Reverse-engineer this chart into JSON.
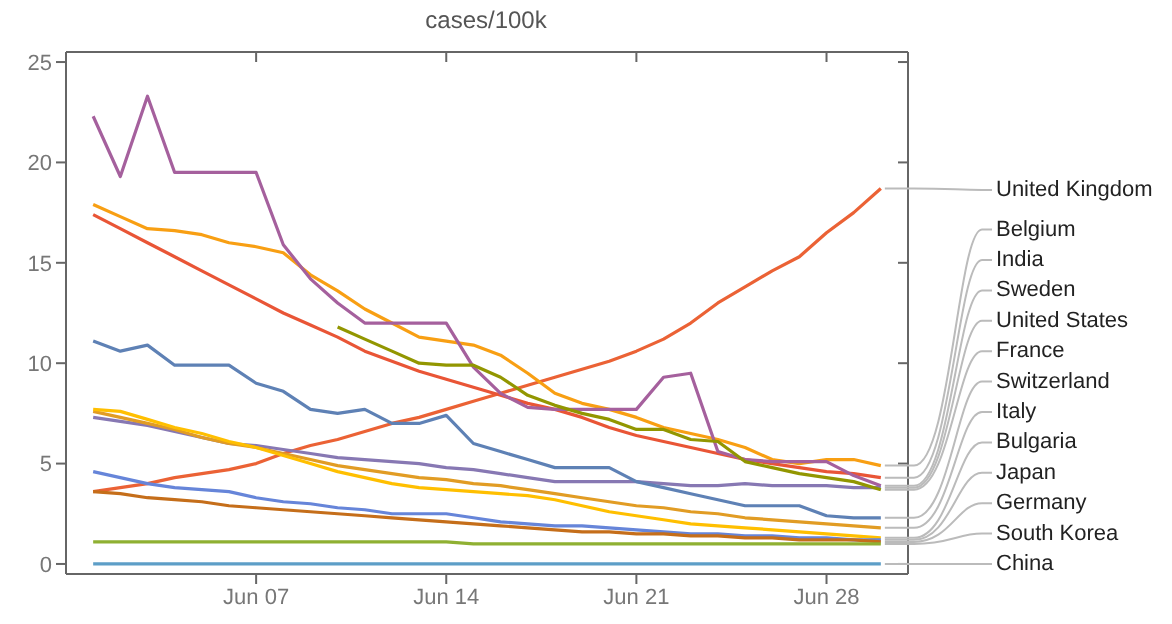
{
  "chart_data": {
    "type": "line",
    "title": "cases/100k",
    "x": [
      "--06-01",
      "--06-02",
      "--06-03",
      "--06-04",
      "--06-05",
      "--06-06",
      "--06-07",
      "--06-08",
      "--06-09",
      "--06-10",
      "--06-11",
      "--06-12",
      "--06-13",
      "--06-14",
      "--06-15",
      "--06-16",
      "--06-17",
      "--06-18",
      "--06-19",
      "--06-20",
      "--06-21",
      "--06-22",
      "--06-23",
      "--06-24",
      "--06-25",
      "--06-26",
      "--06-27",
      "--06-28",
      "--06-29",
      "--06-30"
    ],
    "xlim": [
      "--05-31",
      "--07-01"
    ],
    "xticks": [
      {
        "value": "--06-07",
        "label": "Jun 07"
      },
      {
        "value": "--06-14",
        "label": "Jun 14"
      },
      {
        "value": "--06-21",
        "label": "Jun 21"
      },
      {
        "value": "--06-28",
        "label": "Jun 28"
      }
    ],
    "ylim": [
      -0.5,
      25.5
    ],
    "yticks": [
      0,
      5,
      10,
      15,
      20,
      25
    ],
    "grid": false,
    "marker": "none",
    "line_style": "solid",
    "series": [
      {
        "name": "United Kingdom",
        "color": "#eb6235",
        "values": [
          3.6,
          3.8,
          4.0,
          4.3,
          4.5,
          4.7,
          5.0,
          5.5,
          5.9,
          6.2,
          6.6,
          7.0,
          7.3,
          7.7,
          8.1,
          8.5,
          8.9,
          9.3,
          9.7,
          10.1,
          10.6,
          11.2,
          12.0,
          13.0,
          13.8,
          14.6,
          15.3,
          16.5,
          17.5,
          18.7
        ]
      },
      {
        "name": "Belgium",
        "color": "#f89f13",
        "values": [
          17.9,
          17.3,
          16.7,
          16.6,
          16.4,
          16.0,
          15.8,
          15.5,
          14.4,
          13.6,
          12.7,
          12.0,
          11.3,
          11.1,
          10.9,
          10.4,
          9.5,
          8.5,
          8.0,
          7.7,
          7.3,
          6.8,
          6.5,
          6.2,
          5.8,
          5.2,
          5.0,
          5.2,
          5.2,
          4.9
        ]
      },
      {
        "name": "India",
        "color": "#e95536",
        "values": [
          17.4,
          16.7,
          16.0,
          15.3,
          14.6,
          13.9,
          13.2,
          12.5,
          11.9,
          11.3,
          10.6,
          10.1,
          9.6,
          9.2,
          8.8,
          8.4,
          8.0,
          7.7,
          7.3,
          6.8,
          6.4,
          6.1,
          5.8,
          5.5,
          5.2,
          5.0,
          4.8,
          4.6,
          4.5,
          4.3
        ]
      },
      {
        "name": "Sweden",
        "color": "#a5609d",
        "values": [
          22.3,
          19.3,
          23.3,
          19.5,
          19.5,
          19.5,
          19.5,
          15.9,
          14.2,
          13.0,
          12.0,
          12.0,
          12.0,
          12.0,
          9.8,
          8.5,
          7.8,
          7.7,
          7.7,
          7.7,
          7.7,
          9.3,
          9.5,
          5.6,
          5.2,
          5.1,
          5.1,
          5.1,
          4.4,
          3.9
        ]
      },
      {
        "name": "United States",
        "color": "#8778b3",
        "values": [
          7.3,
          7.1,
          6.9,
          6.6,
          6.3,
          6.0,
          5.9,
          5.7,
          5.5,
          5.3,
          5.2,
          5.1,
          5.0,
          4.8,
          4.7,
          4.5,
          4.3,
          4.1,
          4.1,
          4.1,
          4.1,
          4.0,
          3.9,
          3.9,
          4.0,
          3.9,
          3.9,
          3.9,
          3.8,
          3.8
        ]
      },
      {
        "name": "France",
        "color": "#929600",
        "values": [
          null,
          null,
          null,
          null,
          null,
          null,
          null,
          null,
          null,
          11.8,
          11.2,
          10.6,
          10.0,
          9.9,
          9.9,
          9.3,
          8.4,
          7.9,
          7.5,
          7.2,
          6.7,
          6.7,
          6.2,
          6.1,
          5.1,
          4.8,
          4.5,
          4.3,
          4.1,
          3.7
        ]
      },
      {
        "name": "Switzerland",
        "color": "#5e81b5",
        "values": [
          11.1,
          10.6,
          10.9,
          9.9,
          9.9,
          9.9,
          9.0,
          8.6,
          7.7,
          7.5,
          7.7,
          7.0,
          7.0,
          7.4,
          6.0,
          5.6,
          5.2,
          4.8,
          4.8,
          4.8,
          4.1,
          3.8,
          3.5,
          3.2,
          2.9,
          2.9,
          2.9,
          2.4,
          2.3,
          2.3
        ]
      },
      {
        "name": "Italy",
        "color": "#e19c24",
        "values": [
          7.6,
          7.3,
          7.0,
          6.7,
          6.3,
          6.0,
          5.8,
          5.5,
          5.2,
          4.9,
          4.7,
          4.5,
          4.3,
          4.2,
          4.0,
          3.9,
          3.7,
          3.5,
          3.3,
          3.1,
          2.9,
          2.8,
          2.6,
          2.5,
          2.3,
          2.2,
          2.1,
          2.0,
          1.9,
          1.8
        ]
      },
      {
        "name": "Bulgaria",
        "color": "#ffbf00",
        "values": [
          7.7,
          7.6,
          7.2,
          6.8,
          6.5,
          6.1,
          5.8,
          5.4,
          5.0,
          4.6,
          4.3,
          4.0,
          3.8,
          3.7,
          3.6,
          3.5,
          3.4,
          3.2,
          2.9,
          2.6,
          2.4,
          2.2,
          2.0,
          1.9,
          1.8,
          1.7,
          1.6,
          1.5,
          1.4,
          1.3
        ]
      },
      {
        "name": "Japan",
        "color": "#6685d9",
        "values": [
          4.6,
          4.3,
          4.0,
          3.8,
          3.7,
          3.6,
          3.3,
          3.1,
          3.0,
          2.8,
          2.7,
          2.5,
          2.5,
          2.5,
          2.3,
          2.1,
          2.0,
          1.9,
          1.9,
          1.8,
          1.7,
          1.6,
          1.5,
          1.5,
          1.4,
          1.4,
          1.3,
          1.3,
          1.2,
          1.2
        ]
      },
      {
        "name": "Germany",
        "color": "#c56e1a",
        "values": [
          3.6,
          3.5,
          3.3,
          3.2,
          3.1,
          2.9,
          2.8,
          2.7,
          2.6,
          2.5,
          2.4,
          2.3,
          2.2,
          2.1,
          2.0,
          1.9,
          1.8,
          1.7,
          1.6,
          1.6,
          1.5,
          1.5,
          1.4,
          1.4,
          1.3,
          1.3,
          1.2,
          1.2,
          1.2,
          1.1
        ]
      },
      {
        "name": "South Korea",
        "color": "#8fb032",
        "values": [
          1.1,
          1.1,
          1.1,
          1.1,
          1.1,
          1.1,
          1.1,
          1.1,
          1.1,
          1.1,
          1.1,
          1.1,
          1.1,
          1.1,
          1.0,
          1.0,
          1.0,
          1.0,
          1.0,
          1.0,
          1.0,
          1.0,
          1.0,
          1.0,
          1.0,
          1.0,
          1.0,
          1.0,
          1.0,
          1.0
        ]
      },
      {
        "name": "China",
        "color": "#5d9ec7",
        "values": [
          0,
          0,
          0,
          0,
          0,
          0,
          0,
          0,
          0,
          0,
          0,
          0,
          0,
          0,
          0,
          0,
          0,
          0,
          0,
          0,
          0,
          0,
          0,
          0,
          0,
          0,
          0,
          0,
          0,
          0
        ]
      }
    ]
  }
}
